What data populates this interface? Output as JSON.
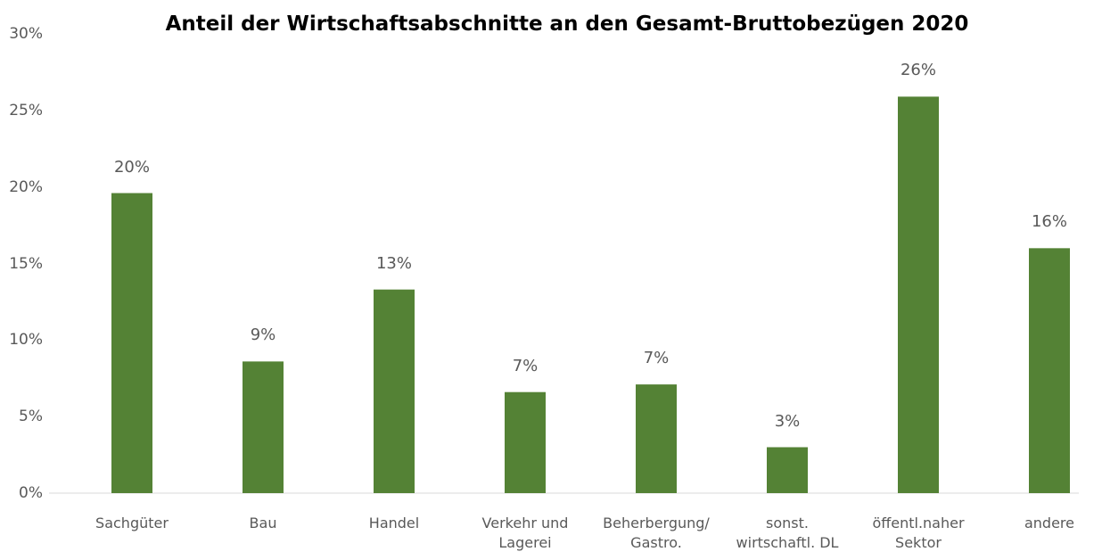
{
  "chart_data": {
    "type": "bar",
    "title": "Anteil der Wirtschaftsabschnitte an den Gesamt-Bruttobezügen 2020",
    "categories": [
      "Sachgüter",
      "Bau",
      "Handel",
      "Verkehr und Lagerei",
      "Beherbergung/ Gastro.",
      "sonst. wirtschaftl. DL",
      "öffentl.naher Sektor",
      "andere"
    ],
    "values": [
      19.6,
      8.6,
      13.3,
      6.6,
      7.1,
      3.0,
      25.9,
      16.0
    ],
    "value_labels": [
      "20%",
      "9%",
      "13%",
      "7%",
      "7%",
      "3%",
      "26%",
      "16%"
    ],
    "color": "#548235",
    "ylim": [
      0,
      30
    ],
    "yticks": [
      {
        "value": 0,
        "label": "0%"
      },
      {
        "value": 5,
        "label": "5%"
      },
      {
        "value": 10,
        "label": "10%"
      },
      {
        "value": 15,
        "label": "15%"
      },
      {
        "value": 20,
        "label": "20%"
      },
      {
        "value": 25,
        "label": "25%"
      },
      {
        "value": 30,
        "label": "30%"
      }
    ],
    "grid": false
  }
}
